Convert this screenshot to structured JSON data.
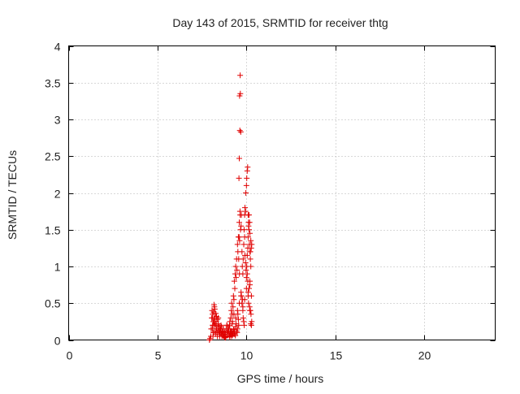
{
  "chart_data": {
    "type": "scatter",
    "title": "Day 143 of 2015, SRMTID for receiver thtg",
    "xlabel": "GPS time / hours",
    "ylabel": "SRMTID / TECUs",
    "xlim": [
      0,
      24
    ],
    "ylim": [
      0,
      4
    ],
    "xticks": [
      0,
      5,
      10,
      15,
      20
    ],
    "xtick_labels": [
      "0",
      "5",
      "10",
      "15",
      "20"
    ],
    "yticks": [
      0,
      0.5,
      1,
      1.5,
      2,
      2.5,
      3,
      3.5,
      4
    ],
    "ytick_labels": [
      "0",
      "0.5",
      "1",
      "1.5",
      "2",
      "2.5",
      "3",
      "3.5",
      "4"
    ],
    "grid": true,
    "marker": "+",
    "marker_color": "#e00000",
    "series": [
      {
        "name": "SRMTID",
        "x": [
          7.92,
          7.95,
          8.0,
          8.02,
          8.05,
          8.07,
          8.1,
          8.12,
          8.15,
          8.17,
          8.2,
          8.22,
          8.25,
          8.27,
          8.3,
          8.32,
          8.35,
          8.37,
          8.4,
          8.42,
          8.45,
          8.47,
          8.5,
          8.52,
          8.55,
          8.57,
          8.6,
          8.62,
          8.65,
          8.68,
          8.7,
          8.72,
          8.75,
          8.78,
          8.8,
          8.82,
          8.85,
          8.88,
          8.9,
          8.92,
          8.95,
          8.98,
          9.0,
          9.02,
          9.05,
          9.07,
          9.1,
          9.12,
          9.15,
          9.17,
          9.2,
          9.22,
          9.25,
          9.27,
          9.3,
          9.32,
          9.35,
          9.37,
          9.4,
          9.42,
          9.45,
          9.47,
          9.5,
          9.52,
          9.55,
          9.57,
          9.6,
          9.62,
          9.65,
          9.67,
          9.7,
          9.72,
          9.75,
          9.77,
          9.8,
          9.82,
          9.85,
          9.87,
          9.9,
          9.92,
          9.95,
          9.97,
          10.0,
          10.02,
          10.05,
          10.07,
          10.1,
          10.12,
          10.15,
          10.17,
          10.2,
          10.22,
          10.25,
          10.27,
          10.3,
          8.1,
          8.2,
          8.3,
          8.4,
          8.5,
          8.6,
          8.7,
          8.8,
          8.9,
          9.0,
          9.1,
          9.2,
          9.3,
          9.4,
          9.5,
          9.6,
          9.7,
          9.8,
          9.9,
          10.0,
          10.1,
          10.2,
          9.65,
          9.66,
          9.62,
          9.63,
          9.68,
          9.6,
          9.58,
          9.64,
          9.59,
          9.61,
          9.7,
          9.72,
          9.75,
          9.78,
          9.8,
          9.82,
          9.85,
          9.88,
          9.9,
          9.92,
          9.95,
          9.98,
          10.0,
          10.02,
          10.05,
          10.08,
          10.1,
          10.12,
          10.15,
          10.18,
          10.2,
          10.22,
          10.25,
          9.52,
          9.55,
          9.57,
          9.5,
          9.45,
          9.48,
          9.4,
          9.42,
          9.35,
          9.38,
          9.3,
          9.33,
          9.25,
          9.28,
          9.2,
          9.22,
          9.15,
          9.17,
          9.1,
          9.12,
          9.05,
          9.07,
          8.18,
          8.22,
          8.28,
          8.32,
          8.38,
          8.42,
          8.48,
          8.52,
          8.58,
          8.62,
          8.68,
          8.72,
          8.78,
          8.82,
          8.1,
          8.15,
          8.12,
          8.08,
          8.14,
          8.16,
          8.2,
          8.24,
          10.05,
          10.08,
          10.1,
          10.12,
          10.15,
          10.18,
          10.2,
          10.25,
          10.28,
          10.3,
          10.22,
          10.26,
          10.28,
          10.2
        ],
        "y": [
          0.0,
          0.02,
          0.05,
          0.15,
          0.3,
          0.4,
          0.35,
          0.2,
          0.1,
          0.25,
          0.45,
          0.3,
          0.12,
          0.08,
          0.2,
          0.15,
          0.1,
          0.05,
          0.18,
          0.3,
          0.12,
          0.08,
          0.05,
          0.1,
          0.15,
          0.2,
          0.08,
          0.05,
          0.12,
          0.1,
          0.15,
          0.08,
          0.05,
          0.1,
          0.12,
          0.08,
          0.05,
          0.15,
          0.2,
          0.1,
          0.12,
          0.18,
          0.1,
          0.15,
          0.2,
          0.25,
          0.12,
          0.3,
          0.4,
          0.5,
          0.35,
          0.25,
          0.45,
          0.6,
          0.55,
          0.8,
          0.7,
          0.9,
          1.0,
          0.85,
          1.1,
          0.95,
          1.3,
          1.2,
          1.4,
          1.1,
          1.6,
          1.35,
          1.7,
          1.5,
          1.55,
          1.7,
          1.2,
          1.0,
          0.9,
          1.1,
          1.3,
          1.5,
          1.7,
          1.8,
          1.75,
          2.0,
          2.1,
          2.2,
          2.3,
          2.35,
          1.7,
          1.6,
          1.5,
          1.3,
          1.2,
          1.1,
          1.35,
          1.25,
          1.3,
          0.3,
          0.2,
          0.25,
          0.15,
          0.1,
          0.18,
          0.12,
          0.08,
          0.2,
          0.15,
          0.12,
          0.22,
          0.35,
          0.3,
          0.4,
          0.5,
          0.6,
          0.45,
          0.55,
          0.7,
          0.65,
          0.8,
          3.6,
          3.35,
          3.32,
          2.85,
          2.83,
          2.47,
          2.2,
          1.75,
          1.4,
          0.9,
          0.65,
          0.6,
          0.5,
          0.55,
          0.4,
          0.3,
          0.25,
          0.2,
          1.4,
          1.15,
          1.05,
          0.95,
          0.85,
          1.0,
          1.15,
          1.25,
          1.4,
          1.55,
          1.7,
          1.6,
          1.45,
          1.2,
          1.0,
          0.35,
          0.28,
          0.2,
          0.15,
          0.12,
          0.1,
          0.18,
          0.22,
          0.08,
          0.06,
          0.15,
          0.12,
          0.09,
          0.14,
          0.1,
          0.07,
          0.12,
          0.05,
          0.1,
          0.08,
          0.06,
          0.04,
          0.48,
          0.42,
          0.36,
          0.32,
          0.28,
          0.22,
          0.18,
          0.15,
          0.1,
          0.08,
          0.06,
          0.05,
          0.04,
          0.03,
          0.2,
          0.1,
          0.05,
          0.15,
          0.25,
          0.38,
          0.3,
          0.22,
          0.9,
          0.8,
          0.6,
          0.5,
          0.7,
          0.45,
          0.4,
          0.22,
          0.2,
          0.25,
          0.4,
          0.35,
          0.6,
          0.75
        ]
      }
    ]
  }
}
